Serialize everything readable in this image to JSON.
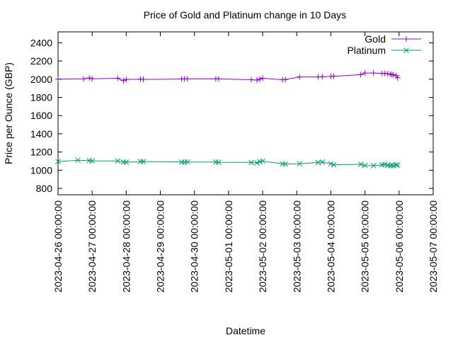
{
  "chart_data": {
    "type": "line",
    "title": "Price of Gold and Platinum change in 10 Days",
    "xlabel": "Datetime",
    "ylabel": "Price per Ounce (GBP)",
    "xlim": [
      "2023-04-26 00:00:00",
      "2023-05-07 00:00:00"
    ],
    "ylim": [
      730,
      2520
    ],
    "x_ticks": [
      "2023-04-26 00:00:00",
      "2023-04-27 00:00:00",
      "2023-04-28 00:00:00",
      "2023-04-29 00:00:00",
      "2023-04-30 00:00:00",
      "2023-05-01 00:00:00",
      "2023-05-02 00:00:00",
      "2023-05-03 00:00:00",
      "2023-05-04 00:00:00",
      "2023-05-05 00:00:00",
      "2023-05-06 00:00:00",
      "2023-05-07 00:00:00"
    ],
    "y_ticks": [
      800,
      1000,
      1200,
      1400,
      1600,
      1800,
      2000,
      2200,
      2400
    ],
    "grid": false,
    "legend_position": "top-right",
    "series": [
      {
        "name": "Gold",
        "color": "#9400d3",
        "marker": "plus",
        "points": [
          [
            "2023-04-26 00:00",
            2000
          ],
          [
            "2023-04-26 18:00",
            2003
          ],
          [
            "2023-04-26 22:00",
            2013
          ],
          [
            "2023-04-27 00:00",
            2005
          ],
          [
            "2023-04-27 18:00",
            2010
          ],
          [
            "2023-04-27 22:00",
            1985
          ],
          [
            "2023-04-28 00:00",
            1997
          ],
          [
            "2023-04-28 10:00",
            2001
          ],
          [
            "2023-04-28 12:00",
            1998
          ],
          [
            "2023-04-29 15:00",
            2002
          ],
          [
            "2023-04-29 17:00",
            2004
          ],
          [
            "2023-04-29 19:00",
            2003
          ],
          [
            "2023-04-30 15:00",
            2004
          ],
          [
            "2023-04-30 17:00",
            2003
          ],
          [
            "2023-05-01 16:00",
            1995
          ],
          [
            "2023-05-01 20:00",
            1990
          ],
          [
            "2023-05-01 22:00",
            2000
          ],
          [
            "2023-05-02 00:00",
            2010
          ],
          [
            "2023-05-02 14:00",
            1995
          ],
          [
            "2023-05-02 16:00",
            1996
          ],
          [
            "2023-05-03 02:00",
            2025
          ],
          [
            "2023-05-03 15:00",
            2025
          ],
          [
            "2023-05-03 18:00",
            2028
          ],
          [
            "2023-05-04 00:00",
            2030
          ],
          [
            "2023-05-04 02:00",
            2032
          ],
          [
            "2023-05-04 21:00",
            2050
          ],
          [
            "2023-05-05 00:00",
            2068
          ],
          [
            "2023-05-05 06:00",
            2068
          ],
          [
            "2023-05-05 12:00",
            2063
          ],
          [
            "2023-05-05 14:00",
            2064
          ],
          [
            "2023-05-05 16:00",
            2060
          ],
          [
            "2023-05-05 18:00",
            2055
          ],
          [
            "2023-05-05 19:00",
            2050
          ],
          [
            "2023-05-05 20:00",
            2048
          ],
          [
            "2023-05-05 22:00",
            2040
          ],
          [
            "2023-05-05 23:00",
            2015
          ]
        ]
      },
      {
        "name": "Platinum",
        "color": "#009e73",
        "marker": "cross",
        "points": [
          [
            "2023-04-26 00:00",
            1095
          ],
          [
            "2023-04-26 14:00",
            1110
          ],
          [
            "2023-04-26 22:00",
            1105
          ],
          [
            "2023-04-27 00:00",
            1102
          ],
          [
            "2023-04-27 18:00",
            1102
          ],
          [
            "2023-04-27 22:00",
            1090
          ],
          [
            "2023-04-28 00:00",
            1088
          ],
          [
            "2023-04-28 10:00",
            1095
          ],
          [
            "2023-04-28 12:00",
            1096
          ],
          [
            "2023-04-29 15:00",
            1090
          ],
          [
            "2023-04-29 17:00",
            1088
          ],
          [
            "2023-04-29 19:00",
            1090
          ],
          [
            "2023-04-30 15:00",
            1090
          ],
          [
            "2023-04-30 17:00",
            1087
          ],
          [
            "2023-05-01 16:00",
            1085
          ],
          [
            "2023-05-01 20:00",
            1080
          ],
          [
            "2023-05-01 22:00",
            1095
          ],
          [
            "2023-05-02 00:00",
            1100
          ],
          [
            "2023-05-02 14:00",
            1070
          ],
          [
            "2023-05-02 16:00",
            1068
          ],
          [
            "2023-05-03 02:00",
            1072
          ],
          [
            "2023-05-03 15:00",
            1085
          ],
          [
            "2023-05-03 18:00",
            1090
          ],
          [
            "2023-05-04 00:00",
            1070
          ],
          [
            "2023-05-04 02:00",
            1060
          ],
          [
            "2023-05-04 21:00",
            1065
          ],
          [
            "2023-05-05 00:00",
            1052
          ],
          [
            "2023-05-05 06:00",
            1050
          ],
          [
            "2023-05-05 12:00",
            1060
          ],
          [
            "2023-05-05 14:00",
            1062
          ],
          [
            "2023-05-05 16:00",
            1055
          ],
          [
            "2023-05-05 18:00",
            1050
          ],
          [
            "2023-05-05 19:00",
            1058
          ],
          [
            "2023-05-05 20:00",
            1048
          ],
          [
            "2023-05-05 22:00",
            1060
          ],
          [
            "2023-05-05 23:00",
            1055
          ]
        ]
      }
    ]
  }
}
